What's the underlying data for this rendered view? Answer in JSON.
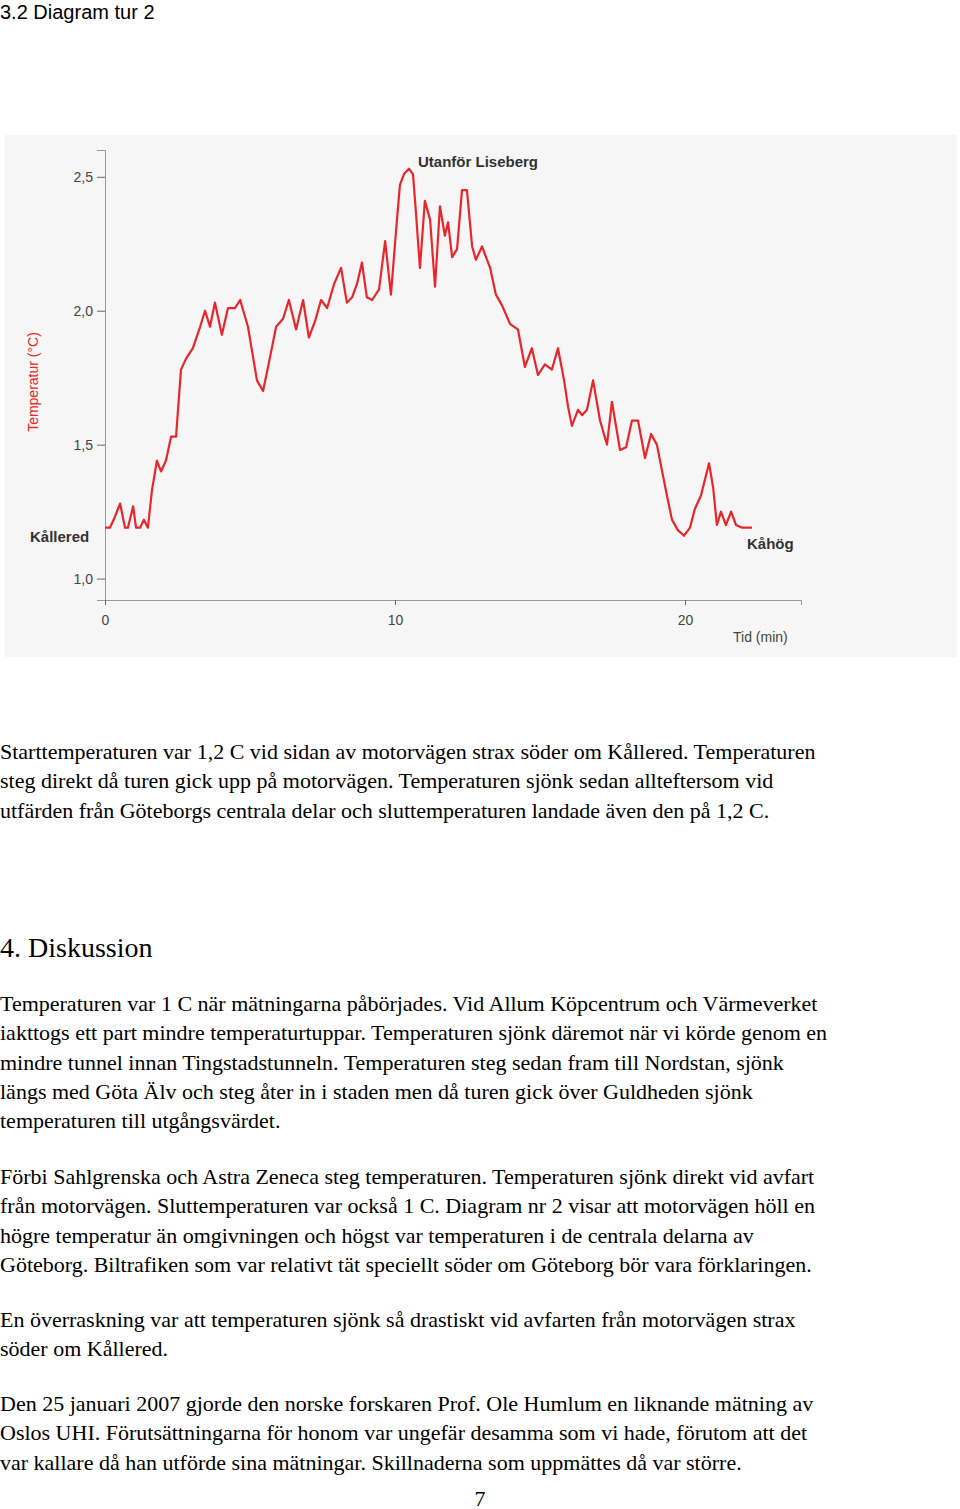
{
  "heading": "3.2 Diagram tur 2",
  "chart_data": {
    "type": "line",
    "xlabel": "Tid (min)",
    "ylabel": "Temperatur (°C)",
    "color": "#e8262b",
    "annotations": [
      "Utanför Liseberg",
      "Kållered",
      "Kåhög"
    ],
    "xlim": [
      0,
      24
    ],
    "xticks": [
      0,
      10,
      20
    ],
    "ylim": [
      0.92,
      2.6
    ],
    "yticks": [
      {
        "value": 1.0,
        "label": "1,0"
      },
      {
        "value": 1.5,
        "label": "1,5"
      },
      {
        "value": 2.0,
        "label": "2,0"
      },
      {
        "value": 2.5,
        "label": "2,5"
      }
    ],
    "grid": false,
    "x": [
      0,
      0.17,
      0.34,
      0.52,
      0.69,
      0.79,
      0.97,
      1.07,
      1.21,
      1.34,
      1.48,
      1.62,
      1.79,
      1.93,
      2.1,
      2.28,
      2.45,
      2.62,
      2.79,
      3.03,
      3.28,
      3.45,
      3.62,
      3.79,
      4.03,
      4.24,
      4.48,
      4.66,
      4.93,
      5.24,
      5.45,
      5.66,
      5.9,
      6.14,
      6.34,
      6.59,
      6.83,
      7.03,
      7.24,
      7.45,
      7.66,
      7.9,
      8.14,
      8.34,
      8.52,
      8.69,
      8.86,
      9.03,
      9.21,
      9.45,
      9.66,
      9.86,
      10.03,
      10.17,
      10.31,
      10.48,
      10.62,
      10.72,
      10.86,
      11.03,
      11.21,
      11.38,
      11.55,
      11.72,
      11.83,
      11.97,
      12.14,
      12.31,
      12.48,
      12.66,
      12.79,
      13.0,
      13.28,
      13.48,
      13.69,
      13.97,
      14.24,
      14.48,
      14.72,
      14.93,
      15.17,
      15.41,
      15.62,
      15.83,
      15.97,
      16.1,
      16.31,
      16.45,
      16.62,
      16.83,
      17.07,
      17.31,
      17.48,
      17.76,
      17.97,
      18.17,
      18.38,
      18.62,
      18.83,
      19.03,
      19.34,
      19.55,
      19.76,
      19.97,
      20.17,
      20.34,
      20.55,
      20.83,
      20.97,
      21.1,
      21.24,
      21.41,
      21.59,
      21.76,
      21.97,
      22.14,
      22.31
    ],
    "values": [
      1.19,
      1.19,
      1.23,
      1.28,
      1.19,
      1.19,
      1.27,
      1.19,
      1.19,
      1.22,
      1.19,
      1.33,
      1.44,
      1.4,
      1.44,
      1.53,
      1.53,
      1.78,
      1.82,
      1.86,
      1.94,
      2.0,
      1.94,
      2.03,
      1.91,
      2.01,
      2.01,
      2.04,
      1.94,
      1.74,
      1.7,
      1.81,
      1.94,
      1.97,
      2.04,
      1.93,
      2.04,
      1.9,
      1.96,
      2.04,
      2.01,
      2.1,
      2.16,
      2.03,
      2.05,
      2.1,
      2.18,
      2.05,
      2.04,
      2.08,
      2.26,
      2.06,
      2.29,
      2.47,
      2.51,
      2.53,
      2.51,
      2.37,
      2.16,
      2.41,
      2.34,
      2.09,
      2.39,
      2.28,
      2.33,
      2.2,
      2.23,
      2.45,
      2.45,
      2.24,
      2.19,
      2.24,
      2.16,
      2.06,
      2.02,
      1.95,
      1.93,
      1.79,
      1.86,
      1.76,
      1.8,
      1.78,
      1.86,
      1.74,
      1.64,
      1.57,
      1.63,
      1.61,
      1.63,
      1.74,
      1.59,
      1.5,
      1.66,
      1.48,
      1.49,
      1.59,
      1.59,
      1.45,
      1.54,
      1.5,
      1.33,
      1.22,
      1.18,
      1.16,
      1.19,
      1.26,
      1.31,
      1.43,
      1.34,
      1.2,
      1.25,
      1.2,
      1.25,
      1.2,
      1.19,
      1.19,
      1.19
    ]
  },
  "paragraphs": [
    [
      "Starttemperaturen var 1,2 C vid sidan av motorvägen strax söder om Kållered. Temperaturen",
      "steg direkt då turen gick upp på motorvägen. Temperaturen sjönk sedan allteftersom vid",
      "utfärden från Göteborgs centrala delar och sluttemperaturen landade även den på 1,2 C."
    ],
    [
      "Temperaturen var 1 C när mätningarna påbörjades. Vid Allum Köpcentrum och Värmeverket",
      "iakttogs ett part mindre temperaturtuppar. Temperaturen sjönk däremot när vi körde genom en",
      "mindre tunnel innan Tingstadstunneln. Temperaturen steg sedan fram till Nordstan, sjönk",
      "längs med Göta Älv och steg åter in i staden men då turen gick över Guldheden sjönk",
      "temperaturen till utgångsvärdet."
    ],
    [
      "Förbi Sahlgrenska och Astra Zeneca steg temperaturen. Temperaturen sjönk direkt vid avfart",
      "från motorvägen. Sluttemperaturen var också 1 C. Diagram nr 2 visar att motorvägen höll en",
      "högre temperatur än omgivningen och högst var temperaturen i de centrala delarna av",
      "Göteborg. Biltrafiken som var relativt tät speciellt söder om Göteborg bör vara förklaringen."
    ],
    [
      "En överraskning var att temperaturen sjönk så drastiskt vid avfarten från motorvägen strax",
      "söder om Kållered."
    ],
    [
      "Den 25 januari 2007 gjorde den norske forskaren Prof. Ole Humlum en liknande mätning av",
      "Oslos UHI.  Förutsättningarna för honom var ungefär desamma som vi hade, förutom att det",
      "var kallare då han utförde sina mätningar. Skillnaderna som uppmättes då var större."
    ]
  ],
  "section_title": "4. Diskussion",
  "page_number": 7
}
